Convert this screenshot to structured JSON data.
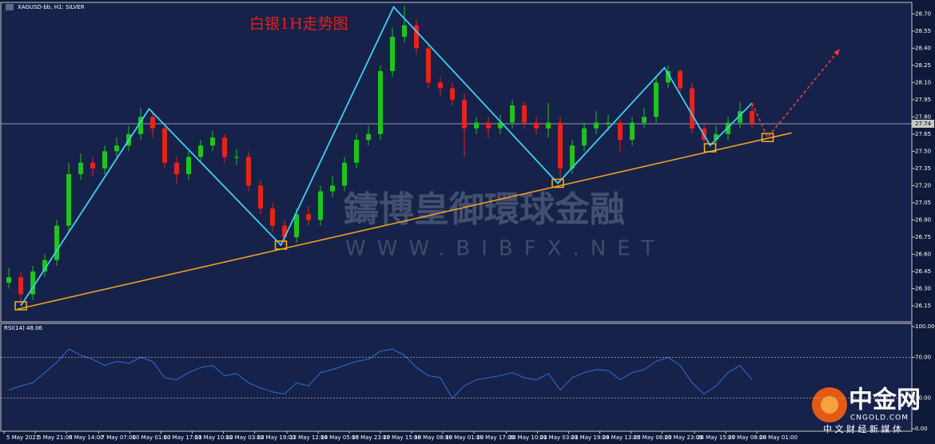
{
  "chart_data": {
    "type": "candlestick",
    "symbol_label": "XAGUSD-bb, H1: SILVER",
    "title": "白银1H走势图",
    "up_color": "#1fc41f",
    "down_color": "#e8231c",
    "xlim": [
      -0.67,
      75.33
    ],
    "ylim": [
      26.01,
      28.8
    ],
    "yticks": [
      {
        "value": 28.7,
        "label": "28.70"
      },
      {
        "value": 28.55,
        "label": "28.55"
      },
      {
        "value": 28.4,
        "label": "28.40"
      },
      {
        "value": 28.25,
        "label": "28.25"
      },
      {
        "value": 28.1,
        "label": "28.10"
      },
      {
        "value": 27.95,
        "label": "27.95"
      },
      {
        "value": 27.8,
        "label": "27.80"
      },
      {
        "value": 27.65,
        "label": "27.65"
      },
      {
        "value": 27.5,
        "label": "27.50"
      },
      {
        "value": 27.35,
        "label": "27.35"
      },
      {
        "value": 27.2,
        "label": "27.20"
      },
      {
        "value": 27.05,
        "label": "27.05"
      },
      {
        "value": 26.9,
        "label": "26.90"
      },
      {
        "value": 26.75,
        "label": "26.75"
      },
      {
        "value": 26.6,
        "label": "26.60"
      },
      {
        "value": 26.45,
        "label": "26.45"
      },
      {
        "value": 26.3,
        "label": "26.30"
      },
      {
        "value": 26.15,
        "label": "26.15"
      }
    ],
    "xticks": [
      {
        "value": -0.4,
        "label": "5 May 2021"
      },
      {
        "value": 2.2,
        "label": "5 May 21:00"
      },
      {
        "value": 4.8,
        "label": "6 May 14:00"
      },
      {
        "value": 7.5,
        "label": "7 May 07:00"
      },
      {
        "value": 10.1,
        "label": "10 May 01:00"
      },
      {
        "value": 12.7,
        "label": "10 May 17:00"
      },
      {
        "value": 15.3,
        "label": "11 May 10:00"
      },
      {
        "value": 17.9,
        "label": "12 May 03:00"
      },
      {
        "value": 20.5,
        "label": "12 May 19:00"
      },
      {
        "value": 23.2,
        "label": "13 May 12:00"
      },
      {
        "value": 25.8,
        "label": "14 May 05:00"
      },
      {
        "value": 28.4,
        "label": "16 May 23:00"
      },
      {
        "value": 31.0,
        "label": "17 May 15:00"
      },
      {
        "value": 33.6,
        "label": "18 May 08:00"
      },
      {
        "value": 36.2,
        "label": "19 May 01:00"
      },
      {
        "value": 38.8,
        "label": "19 May 17:00"
      },
      {
        "value": 41.5,
        "label": "20 May 10:00"
      },
      {
        "value": 44.1,
        "label": "21 May 03:00"
      },
      {
        "value": 46.7,
        "label": "21 May 19:00"
      },
      {
        "value": 49.3,
        "label": "24 May 13:00"
      },
      {
        "value": 51.9,
        "label": "25 May 06:00"
      },
      {
        "value": 54.5,
        "label": "25 May 23:00"
      },
      {
        "value": 57.2,
        "label": "26 May 15:00"
      },
      {
        "value": 59.8,
        "label": "27 May 08:00"
      },
      {
        "value": 62.4,
        "label": "28 May 01:00"
      }
    ],
    "current_price": {
      "value": 27.74,
      "label": "27.74"
    },
    "candles": [
      [
        26.35,
        26.48,
        26.3,
        26.4
      ],
      [
        26.4,
        26.45,
        26.15,
        26.25
      ],
      [
        26.25,
        26.5,
        26.2,
        26.45
      ],
      [
        26.45,
        26.6,
        26.4,
        26.55
      ],
      [
        26.55,
        26.9,
        26.5,
        26.85
      ],
      [
        26.85,
        27.4,
        26.8,
        27.3
      ],
      [
        27.3,
        27.48,
        27.25,
        27.4
      ],
      [
        27.4,
        27.45,
        27.28,
        27.35
      ],
      [
        27.35,
        27.55,
        27.3,
        27.5
      ],
      [
        27.5,
        27.62,
        27.45,
        27.55
      ],
      [
        27.55,
        27.72,
        27.5,
        27.65
      ],
      [
        27.65,
        27.88,
        27.6,
        27.8
      ],
      [
        27.8,
        27.85,
        27.62,
        27.7
      ],
      [
        27.7,
        27.75,
        27.35,
        27.4
      ],
      [
        27.4,
        27.45,
        27.22,
        27.3
      ],
      [
        27.3,
        27.5,
        27.25,
        27.45
      ],
      [
        27.45,
        27.6,
        27.4,
        27.55
      ],
      [
        27.55,
        27.68,
        27.5,
        27.62
      ],
      [
        27.62,
        27.65,
        27.4,
        27.45
      ],
      [
        27.45,
        27.52,
        27.38,
        27.45
      ],
      [
        27.45,
        27.5,
        27.15,
        27.2
      ],
      [
        27.2,
        27.25,
        26.95,
        27.0
      ],
      [
        27.0,
        27.05,
        26.8,
        26.85
      ],
      [
        26.85,
        26.9,
        26.68,
        26.75
      ],
      [
        26.75,
        27.0,
        26.7,
        26.95
      ],
      [
        26.95,
        27.02,
        26.85,
        26.9
      ],
      [
        26.9,
        27.2,
        26.85,
        27.15
      ],
      [
        27.15,
        27.28,
        27.1,
        27.2
      ],
      [
        27.2,
        27.45,
        27.15,
        27.4
      ],
      [
        27.4,
        27.65,
        27.35,
        27.6
      ],
      [
        27.6,
        27.72,
        27.55,
        27.65
      ],
      [
        27.65,
        28.25,
        27.6,
        28.2
      ],
      [
        28.2,
        28.58,
        28.15,
        28.5
      ],
      [
        28.5,
        28.77,
        28.45,
        28.6
      ],
      [
        28.6,
        28.65,
        28.35,
        28.4
      ],
      [
        28.4,
        28.45,
        28.05,
        28.1
      ],
      [
        28.1,
        28.15,
        27.98,
        28.05
      ],
      [
        28.05,
        28.1,
        27.9,
        27.95
      ],
      [
        27.95,
        28.0,
        27.45,
        27.7
      ],
      [
        27.7,
        27.8,
        27.65,
        27.75
      ],
      [
        27.75,
        27.8,
        27.62,
        27.7
      ],
      [
        27.7,
        27.82,
        27.65,
        27.75
      ],
      [
        27.75,
        27.95,
        27.7,
        27.9
      ],
      [
        27.9,
        27.93,
        27.7,
        27.75
      ],
      [
        27.75,
        27.8,
        27.65,
        27.7
      ],
      [
        27.7,
        27.92,
        27.62,
        27.75
      ],
      [
        27.75,
        27.8,
        27.22,
        27.35
      ],
      [
        27.35,
        27.6,
        27.3,
        27.55
      ],
      [
        27.55,
        27.75,
        27.5,
        27.7
      ],
      [
        27.7,
        27.85,
        27.65,
        27.75
      ],
      [
        27.75,
        27.82,
        27.68,
        27.75
      ],
      [
        27.75,
        27.78,
        27.5,
        27.6
      ],
      [
        27.6,
        27.8,
        27.55,
        27.75
      ],
      [
        27.75,
        27.88,
        27.7,
        27.8
      ],
      [
        27.8,
        28.15,
        27.75,
        28.1
      ],
      [
        28.1,
        28.25,
        28.05,
        28.2
      ],
      [
        28.2,
        28.22,
        28.0,
        28.05
      ],
      [
        28.05,
        28.1,
        27.65,
        27.7
      ],
      [
        27.7,
        27.75,
        27.52,
        27.6
      ],
      [
        27.6,
        27.72,
        27.55,
        27.65
      ],
      [
        27.65,
        27.8,
        27.6,
        27.75
      ],
      [
        27.75,
        27.93,
        27.7,
        27.85
      ],
      [
        27.85,
        27.9,
        27.7,
        27.74
      ]
    ],
    "trendline": {
      "color": "#f0a020",
      "points": [
        [
          0.7,
          26.12
        ],
        [
          65.3,
          27.66
        ]
      ]
    },
    "zigzag": {
      "color": "#3fd0f0",
      "points": [
        [
          1,
          26.15
        ],
        [
          11.7,
          27.87
        ],
        [
          22.7,
          26.68
        ],
        [
          32.1,
          28.76
        ],
        [
          45.8,
          27.22
        ],
        [
          54.7,
          28.23
        ],
        [
          58.5,
          27.55
        ],
        [
          62,
          27.92
        ]
      ]
    },
    "projection": {
      "color": "#e8403a",
      "points": [
        [
          62,
          27.92
        ],
        [
          63.3,
          27.62
        ],
        [
          69.3,
          28.39
        ]
      ]
    },
    "boxes": {
      "color": "#f0b020",
      "points": [
        [
          1,
          26.15
        ],
        [
          22.7,
          26.68
        ],
        [
          45.8,
          27.22
        ],
        [
          58.5,
          27.53
        ],
        [
          63.3,
          27.62
        ]
      ]
    },
    "rsi": {
      "label": "RSI(14) 48.06",
      "color": "#2f6fd6",
      "ylim": [
        0,
        100
      ],
      "yticks": [
        {
          "value": 100,
          "label": "100.00"
        },
        {
          "value": 70,
          "label": "70.00"
        },
        {
          "value": 30,
          "label": "30.00"
        },
        {
          "value": 0,
          "label": "0.00"
        }
      ],
      "levels": [
        70,
        30
      ],
      "values": [
        38,
        42,
        45,
        55,
        65,
        78,
        72,
        68,
        62,
        66,
        64,
        70,
        66,
        50,
        48,
        55,
        60,
        62,
        52,
        54,
        45,
        40,
        36,
        34,
        45,
        42,
        55,
        58,
        62,
        66,
        68,
        76,
        78,
        72,
        60,
        52,
        50,
        30,
        42,
        48,
        50,
        52,
        55,
        50,
        48,
        54,
        38,
        50,
        55,
        58,
        57,
        48,
        55,
        58,
        66,
        70,
        62,
        45,
        34,
        42,
        55,
        62,
        48.06
      ]
    }
  },
  "watermark": {
    "name": "鑄博皇御環球金融",
    "url": "WWW.BIBFX.NET"
  },
  "logo": {
    "name": "中金网",
    "domain": "CNGOLD.COM",
    "slogan": "中 文 财 经 新 媒 体"
  }
}
